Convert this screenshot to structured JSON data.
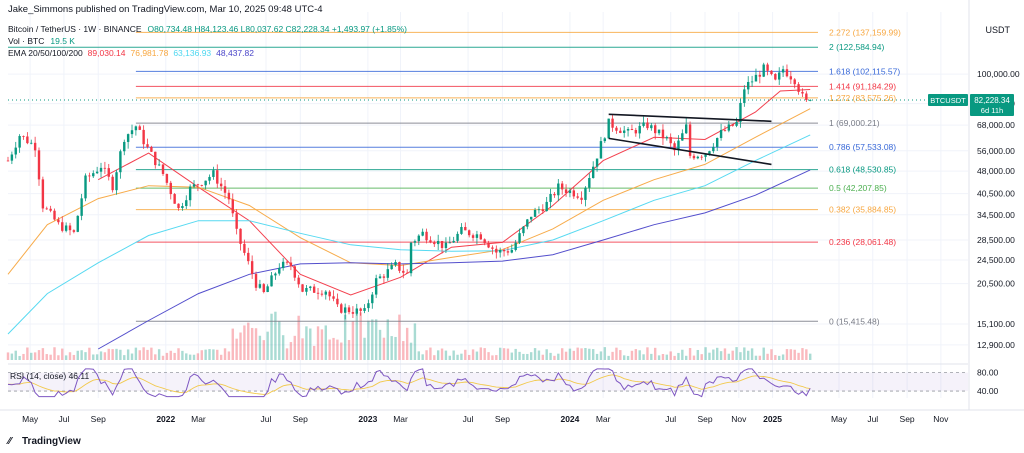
{
  "header": {
    "publish_line": "Jake_Simmons published on TradingView.com, Mar 10, 2025 09:48 UTC-4",
    "symbol": "Bitcoin / TetherUS · 1W · BINANCE",
    "ohlc": "O80,734.48 H84,123.46 L80,037.62 C82,228.34 +1,493.97 (+1.85%)",
    "vol_label": "Vol · BTC",
    "vol_value": "19.5 K",
    "ema_label": "EMA 20/50/100/200",
    "ema_values": [
      "89,030.14",
      "76,981.78",
      "63,136.93",
      "48,437.82"
    ]
  },
  "currency": "USDT",
  "price_tag": {
    "symbol": "BTCUSDT",
    "price": "82,228.34",
    "countdown": "6d 11h"
  },
  "rsi_label": "RSI (14, close)  46.11",
  "brand": "TradingView",
  "colors": {
    "up": "#089981",
    "down": "#f23645",
    "ema20": "#f23645",
    "ema50": "#f7a740",
    "ema100": "#4dd7f0",
    "ema200": "#4a45c9",
    "rsi": "#7e57c2",
    "rsi_ma": "#f2c94c"
  },
  "chart_data": {
    "type": "candlestick",
    "title": "Bitcoin / TetherUS · 1W · BINANCE",
    "y_scale": "log",
    "y_axis_ticks": [
      100000,
      80000,
      68000,
      56000,
      48000,
      40500,
      34500,
      28500,
      24500,
      20500,
      15100,
      12900
    ],
    "y_axis_tick_labels": [
      "100,000.00",
      "80,000.00",
      "68,000.00",
      "56,000.00",
      "48,000.00",
      "40,500.00",
      "34,500.00",
      "28,500.00",
      "24,500.00",
      "20,500.00",
      "15,100.00",
      "12,900.00"
    ],
    "x_axis_ticks": [
      {
        "label": "May",
        "date": "2021-05-01"
      },
      {
        "label": "Jul",
        "date": "2021-07-01"
      },
      {
        "label": "Sep",
        "date": "2021-09-01"
      },
      {
        "label": "2022",
        "date": "2022-01-01"
      },
      {
        "label": "Mar",
        "date": "2022-03-01"
      },
      {
        "label": "Jul",
        "date": "2022-07-01"
      },
      {
        "label": "Sep",
        "date": "2022-09-01"
      },
      {
        "label": "2023",
        "date": "2023-01-01"
      },
      {
        "label": "Mar",
        "date": "2023-03-01"
      },
      {
        "label": "Jul",
        "date": "2023-07-01"
      },
      {
        "label": "Sep",
        "date": "2023-09-01"
      },
      {
        "label": "2024",
        "date": "2024-01-01"
      },
      {
        "label": "Mar",
        "date": "2024-03-01"
      },
      {
        "label": "Jul",
        "date": "2024-07-01"
      },
      {
        "label": "Sep",
        "date": "2024-09-01"
      },
      {
        "label": "Nov",
        "date": "2024-11-01"
      },
      {
        "label": "2025",
        "date": "2025-01-01"
      },
      {
        "label": "May",
        "date": "2025-05-01"
      },
      {
        "label": "Jul",
        "date": "2025-07-01"
      },
      {
        "label": "Sep",
        "date": "2025-09-01"
      },
      {
        "label": "Nov",
        "date": "2025-11-01"
      }
    ],
    "x_range": [
      "2021-03-22",
      "2025-12-20"
    ],
    "y_range": [
      11500,
      160000
    ],
    "last_price": 82228.34,
    "fib_levels": [
      {
        "ratio": "2.272",
        "price": 137159.99,
        "label": "2.272 (137,159.99)",
        "color": "#f7a740",
        "start": "2021-11-08"
      },
      {
        "ratio": "2",
        "price": 122584.94,
        "label": "2 (122,584.94)",
        "color": "#089981",
        "start": "2021-03-22"
      },
      {
        "ratio": "1.618",
        "price": 102115.57,
        "label": "1.618 (102,115.57)",
        "color": "#3868d8",
        "start": "2021-11-08"
      },
      {
        "ratio": "1.414",
        "price": 91184.29,
        "label": "1.414 (91,184.29)",
        "color": "#f23645",
        "start": "2021-11-08"
      },
      {
        "ratio": "1.272",
        "price": 83575.26,
        "label": "1.272 (83,575.26)",
        "color": "#f7a740",
        "start": "2021-11-08"
      },
      {
        "ratio": "1",
        "price": 69000.21,
        "label": "1 (69,000.21)",
        "color": "#787b86",
        "start": "2021-11-08"
      },
      {
        "ratio": "0.786",
        "price": 57533.08,
        "label": "0.786 (57,533.08)",
        "color": "#3868d8",
        "start": "2021-11-08"
      },
      {
        "ratio": "0.618",
        "price": 48530.85,
        "label": "0.618 (48,530.85)",
        "color": "#089981",
        "start": "2021-11-08"
      },
      {
        "ratio": "0.5",
        "price": 42207.85,
        "label": "0.5 (42,207.85)",
        "color": "#4caf50",
        "start": "2021-11-08"
      },
      {
        "ratio": "0.382",
        "price": 35884.85,
        "label": "0.382 (35,884.85)",
        "color": "#f7a740",
        "start": "2021-11-08"
      },
      {
        "ratio": "0.236",
        "price": 28061.48,
        "label": "0.236 (28,061.48)",
        "color": "#f23645",
        "start": "2021-11-08"
      },
      {
        "ratio": "0",
        "price": 15415.48,
        "label": "0 (15,415.48)",
        "color": "#787b86",
        "start": "2021-11-08"
      }
    ],
    "trendlines": [
      {
        "from": [
          "2024-03-11",
          73800
        ],
        "to": [
          "2024-12-30",
          70000
        ]
      },
      {
        "from": [
          "2024-03-11",
          61500
        ],
        "to": [
          "2024-12-30",
          50500
        ]
      }
    ],
    "price_path": [
      [
        "2021-03-22",
        52000
      ],
      [
        "2021-04-12",
        63000
      ],
      [
        "2021-05-10",
        58000
      ],
      [
        "2021-05-24",
        37000
      ],
      [
        "2021-06-21",
        32000
      ],
      [
        "2021-07-19",
        30000
      ],
      [
        "2021-08-09",
        45000
      ],
      [
        "2021-09-06",
        50000
      ],
      [
        "2021-09-27",
        43000
      ],
      [
        "2021-10-18",
        62000
      ],
      [
        "2021-11-08",
        67500
      ],
      [
        "2021-11-29",
        57000
      ],
      [
        "2021-12-27",
        47000
      ],
      [
        "2022-01-24",
        36000
      ],
      [
        "2022-02-14",
        42000
      ],
      [
        "2022-03-28",
        47000
      ],
      [
        "2022-04-25",
        39000
      ],
      [
        "2022-05-09",
        30000
      ],
      [
        "2022-06-13",
        20500
      ],
      [
        "2022-06-27",
        19000
      ],
      [
        "2022-07-25",
        23500
      ],
      [
        "2022-08-15",
        23500
      ],
      [
        "2022-09-05",
        19500
      ],
      [
        "2022-10-17",
        19500
      ],
      [
        "2022-11-07",
        17000
      ],
      [
        "2022-12-26",
        16500
      ],
      [
        "2023-01-16",
        21000
      ],
      [
        "2023-02-20",
        23500
      ],
      [
        "2023-03-13",
        22000
      ],
      [
        "2023-03-20",
        28000
      ],
      [
        "2023-04-10",
        30000
      ],
      [
        "2023-05-22",
        27000
      ],
      [
        "2023-06-19",
        30500
      ],
      [
        "2023-07-24",
        29500
      ],
      [
        "2023-08-21",
        26000
      ],
      [
        "2023-09-18",
        26500
      ],
      [
        "2023-10-23",
        34500
      ],
      [
        "2023-11-20",
        37500
      ],
      [
        "2023-12-11",
        42500
      ],
      [
        "2024-01-22",
        40000
      ],
      [
        "2024-02-12",
        50000
      ],
      [
        "2024-03-11",
        69000
      ],
      [
        "2024-04-15",
        64000
      ],
      [
        "2024-05-20",
        68000
      ],
      [
        "2024-06-24",
        61000
      ],
      [
        "2024-07-08",
        56000
      ],
      [
        "2024-07-29",
        67000
      ],
      [
        "2024-08-05",
        54000
      ],
      [
        "2024-09-02",
        55000
      ],
      [
        "2024-09-30",
        64000
      ],
      [
        "2024-10-28",
        69000
      ],
      [
        "2024-11-11",
        90000
      ],
      [
        "2024-12-02",
        98000
      ],
      [
        "2024-12-16",
        104000
      ],
      [
        "2025-01-06",
        94000
      ],
      [
        "2025-01-20",
        104000
      ],
      [
        "2025-02-10",
        96000
      ],
      [
        "2025-02-24",
        84000
      ],
      [
        "2025-03-03",
        80700
      ],
      [
        "2025-03-10",
        82228
      ]
    ],
    "ema_series": [
      {
        "name": "EMA 20",
        "color": "#f23645",
        "points": [
          [
            "2021-09-01",
            45000
          ],
          [
            "2021-12-01",
            55000
          ],
          [
            "2022-03-01",
            42500
          ],
          [
            "2022-06-01",
            33000
          ],
          [
            "2022-09-01",
            22000
          ],
          [
            "2022-12-01",
            18800
          ],
          [
            "2023-03-01",
            21500
          ],
          [
            "2023-06-01",
            27000
          ],
          [
            "2023-09-01",
            28000
          ],
          [
            "2023-12-01",
            37000
          ],
          [
            "2024-03-01",
            52000
          ],
          [
            "2024-06-01",
            62000
          ],
          [
            "2024-09-01",
            61000
          ],
          [
            "2024-12-01",
            75000
          ],
          [
            "2025-01-15",
            88000
          ],
          [
            "2025-03-10",
            89030
          ]
        ]
      },
      {
        "name": "EMA 50",
        "color": "#f7a740",
        "points": [
          [
            "2021-03-22",
            22000
          ],
          [
            "2021-06-01",
            32000
          ],
          [
            "2021-09-01",
            39000
          ],
          [
            "2021-12-01",
            43000
          ],
          [
            "2022-03-01",
            42500
          ],
          [
            "2022-06-01",
            37000
          ],
          [
            "2022-09-01",
            29000
          ],
          [
            "2022-12-01",
            24000
          ],
          [
            "2023-03-01",
            23500
          ],
          [
            "2023-06-01",
            25000
          ],
          [
            "2023-09-01",
            26500
          ],
          [
            "2023-12-01",
            31000
          ],
          [
            "2024-03-01",
            38500
          ],
          [
            "2024-06-01",
            45000
          ],
          [
            "2024-09-01",
            50500
          ],
          [
            "2024-12-01",
            62000
          ],
          [
            "2025-03-10",
            76981
          ]
        ]
      },
      {
        "name": "EMA 100",
        "color": "#4dd7f0",
        "points": [
          [
            "2021-03-22",
            14000
          ],
          [
            "2021-06-01",
            19000
          ],
          [
            "2021-09-01",
            24000
          ],
          [
            "2021-12-01",
            29500
          ],
          [
            "2022-03-01",
            33000
          ],
          [
            "2022-06-01",
            33000
          ],
          [
            "2022-09-01",
            30000
          ],
          [
            "2022-12-01",
            27500
          ],
          [
            "2023-03-01",
            26500
          ],
          [
            "2023-06-01",
            26200
          ],
          [
            "2023-09-01",
            26300
          ],
          [
            "2023-12-01",
            28500
          ],
          [
            "2024-03-01",
            33000
          ],
          [
            "2024-06-01",
            38500
          ],
          [
            "2024-09-01",
            43000
          ],
          [
            "2024-12-01",
            52000
          ],
          [
            "2025-03-10",
            63137
          ]
        ]
      },
      {
        "name": "EMA 200",
        "color": "#4a45c9",
        "points": [
          [
            "2021-09-01",
            12500
          ],
          [
            "2021-12-01",
            15500
          ],
          [
            "2022-03-01",
            19000
          ],
          [
            "2022-06-01",
            22000
          ],
          [
            "2022-09-01",
            23800
          ],
          [
            "2022-12-01",
            24000
          ],
          [
            "2023-03-01",
            23800
          ],
          [
            "2023-06-01",
            24000
          ],
          [
            "2023-09-01",
            24300
          ],
          [
            "2023-12-01",
            25500
          ],
          [
            "2024-03-01",
            28500
          ],
          [
            "2024-06-01",
            32000
          ],
          [
            "2024-09-01",
            35000
          ],
          [
            "2024-12-01",
            40000
          ],
          [
            "2025-03-10",
            48438
          ]
        ]
      }
    ],
    "rsi": {
      "label": "RSI (14, close)",
      "value": 46.11,
      "upper": 80,
      "lower": 40,
      "axis_ticks": [
        80,
        40
      ]
    }
  }
}
